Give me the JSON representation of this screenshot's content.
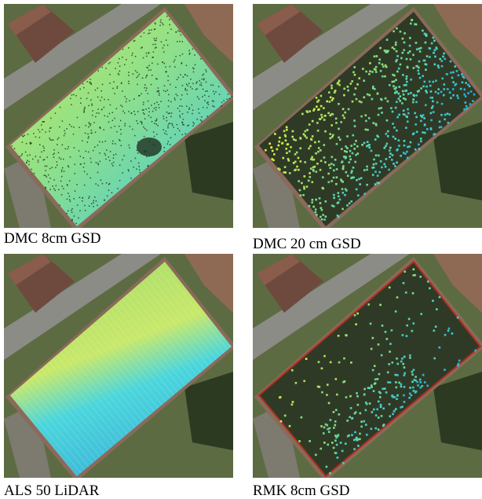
{
  "panels": [
    {
      "caption": "DMC 8cm GSD"
    },
    {
      "caption": "DMC 20 cm GSD"
    },
    {
      "caption": "ALS 50 LiDAR"
    },
    {
      "caption": "RMK 8cm GSD"
    }
  ]
}
